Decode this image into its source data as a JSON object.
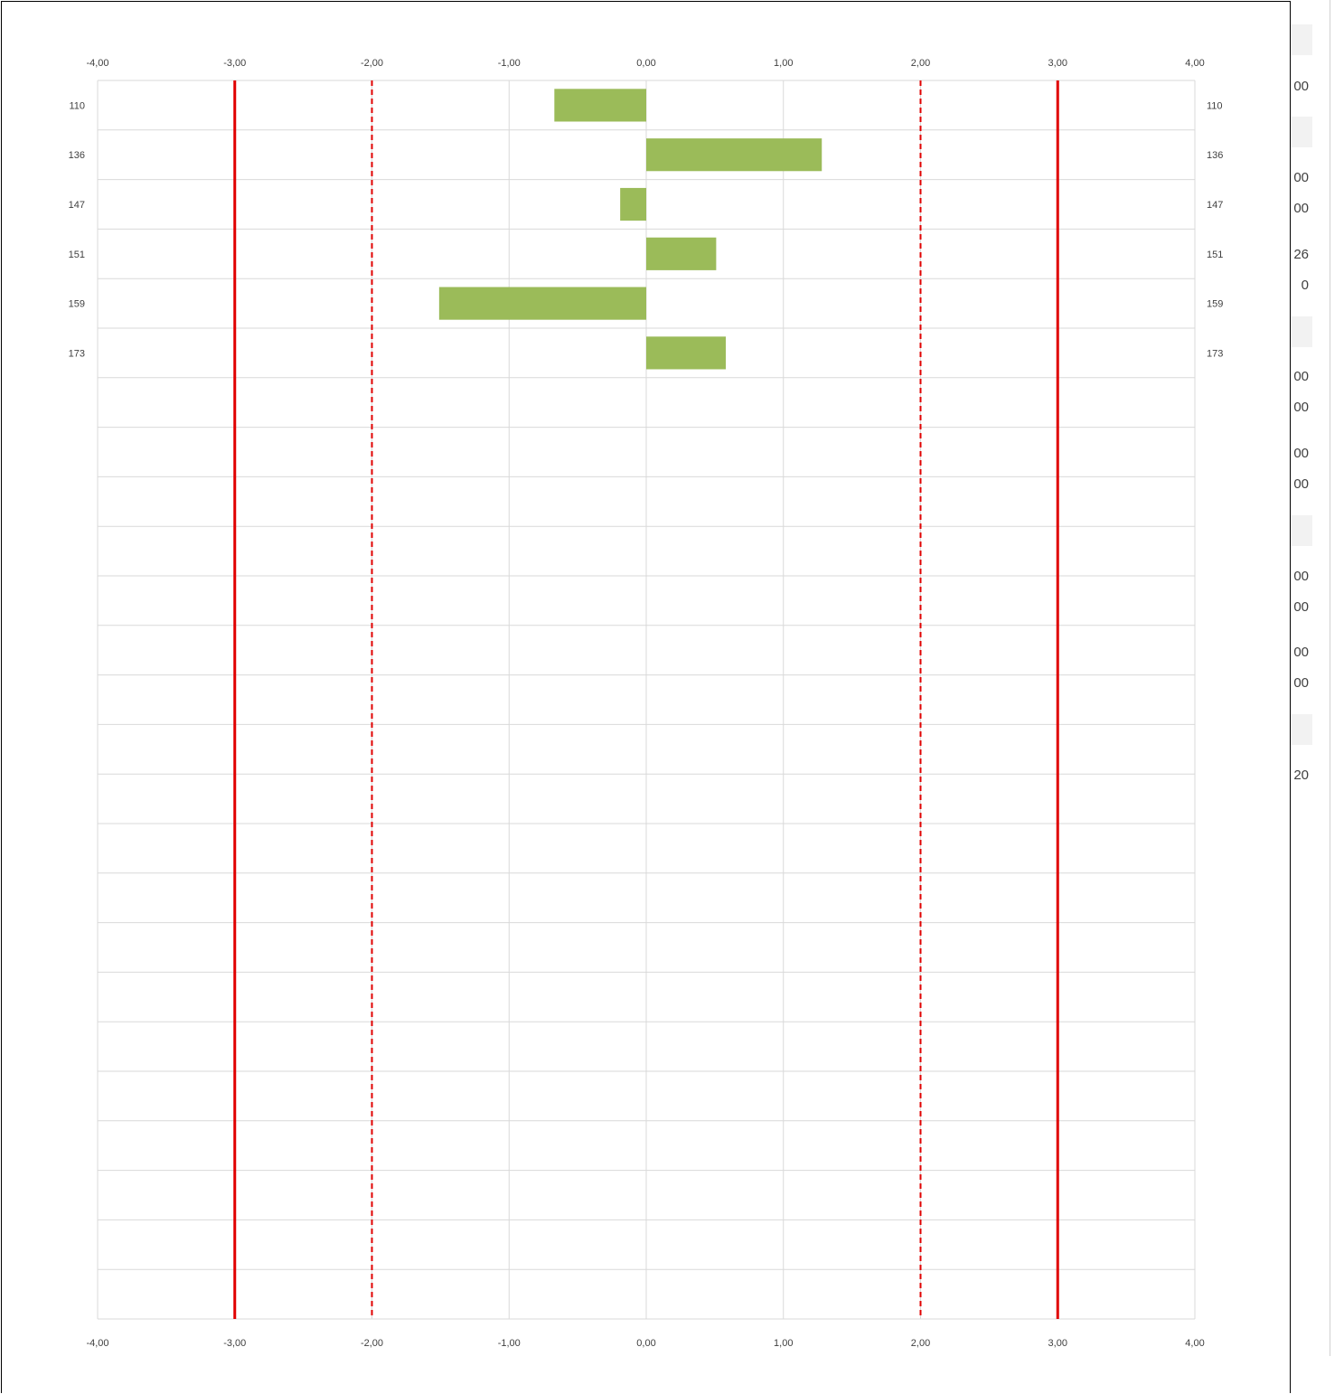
{
  "background_panel": {
    "values": [
      "00",
      "00",
      "00",
      "26",
      "0",
      "00",
      "00",
      "00",
      "00",
      "00",
      "00",
      "00",
      "00",
      "20"
    ]
  },
  "colors": {
    "bar": "#9bbb59",
    "limit_line": "#e00000",
    "grid": "#d9d9d9",
    "text": "#404040"
  },
  "chart_data": {
    "type": "bar",
    "orientation": "horizontal",
    "categories": [
      "110",
      "136",
      "147",
      "151",
      "159",
      "173",
      "",
      "",
      "",
      "",
      "",
      "",
      "",
      "",
      "",
      "",
      "",
      "",
      "",
      "",
      "",
      "",
      "",
      "",
      ""
    ],
    "values": [
      -0.67,
      1.28,
      -0.19,
      0.51,
      -1.51,
      0.58,
      null,
      null,
      null,
      null,
      null,
      null,
      null,
      null,
      null,
      null,
      null,
      null,
      null,
      null,
      null,
      null,
      null,
      null,
      null
    ],
    "x_ticks": [
      "-4,00",
      "-3,00",
      "-2,00",
      "-1,00",
      "0,00",
      "1,00",
      "2,00",
      "3,00",
      "4,00"
    ],
    "xlim": [
      -4,
      4
    ],
    "reference_lines": [
      {
        "value": -3,
        "style": "solid"
      },
      {
        "value": -2,
        "style": "dashed"
      },
      {
        "value": 2,
        "style": "dashed"
      },
      {
        "value": 3,
        "style": "solid"
      }
    ],
    "grid": true,
    "title": "",
    "xlabel": "",
    "ylabel": ""
  }
}
